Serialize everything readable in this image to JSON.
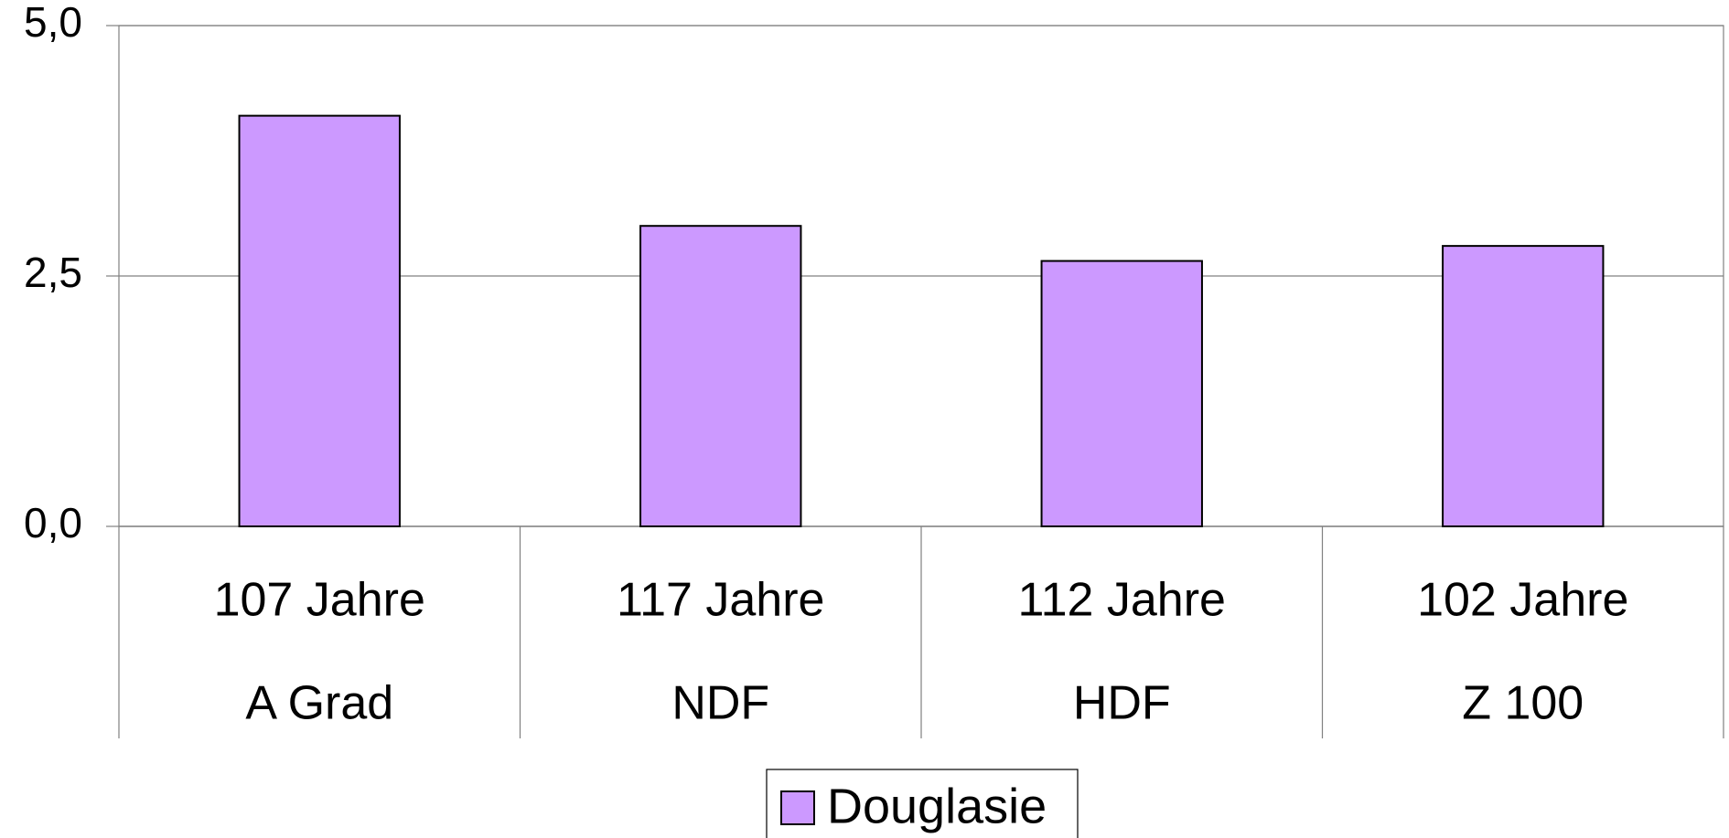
{
  "chart_data": {
    "type": "bar",
    "categories": [
      [
        "107 Jahre",
        "A Grad"
      ],
      [
        "117 Jahre",
        "NDF"
      ],
      [
        "112 Jahre",
        "HDF"
      ],
      [
        "102 Jahre",
        "Z 100"
      ]
    ],
    "series": [
      {
        "name": "Douglasie",
        "color": "#cc99ff",
        "values": [
          4.1,
          3.0,
          2.65,
          2.8
        ]
      }
    ],
    "ylim": [
      0,
      5
    ],
    "yticks": [
      {
        "value": 0,
        "label": "0,0"
      },
      {
        "value": 2.5,
        "label": "2,5"
      },
      {
        "value": 5,
        "label": "5,0"
      }
    ],
    "grid": true,
    "legend": "bottom"
  }
}
